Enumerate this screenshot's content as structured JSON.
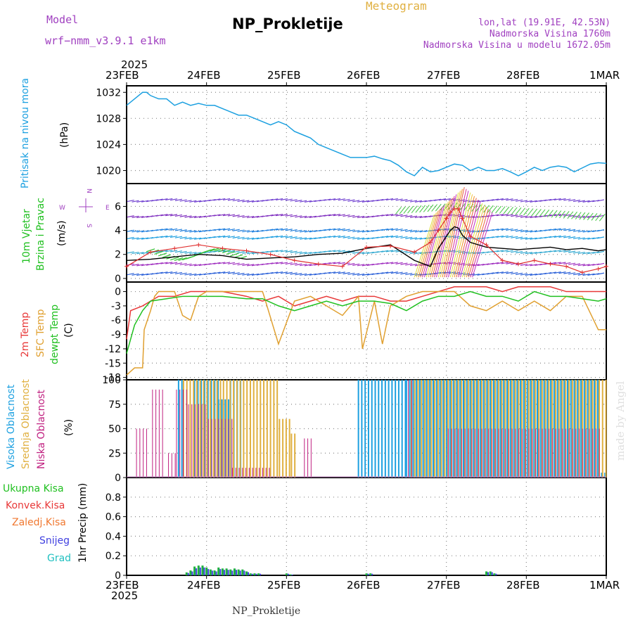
{
  "header": {
    "model_label": "Model",
    "model_name": "wrf−nmm_v3.9.1 e1km",
    "title": "NP_Prokletije",
    "meteogram": "Meteogram",
    "lonlat": "lon,lat (19.91E, 42.53N)",
    "altitude": "Nadmorska Visina 1760m",
    "model_altitude": "Nadmorska Visina u modelu 1672.05m"
  },
  "time_axis": {
    "year": "2025",
    "labels": [
      "23FEB",
      "24FEB",
      "25FEB",
      "26FEB",
      "27FEB",
      "28FEB",
      "1MAR"
    ]
  },
  "panel_labels": {
    "pressure_name": "Pritisak na nivou mora",
    "pressure_unit": "(hPa)",
    "wind_name1": "10m Vjetar",
    "wind_name2": "Brzina i Pravac",
    "wind_unit": "(m/s)",
    "wind_compass_n": "N",
    "wind_compass_s": "S",
    "wind_compass_w": "W",
    "wind_compass_e": "E",
    "temp_2m": "2m Temp",
    "temp_sfc": "SFC Temp",
    "temp_dew": "dewpt Temp",
    "temp_unit": "(C)",
    "cloud_high": "Visoka Oblacnost",
    "cloud_mid": "Srednja Oblacnost",
    "cloud_low": "Niska Oblacnost",
    "cloud_unit": "(%)",
    "precip_total": "Ukupna Kisa",
    "precip_conv": "Konvek.Kisa",
    "precip_strat": "Zaledj.Kisa",
    "precip_snow": "Snijeg",
    "precip_hail": "Grad",
    "precip_unit": "1hr Precip (mm)"
  },
  "footer": "NP_Prokletije",
  "credit": "made by Angel",
  "colors": {
    "pressure": "#1ca0e0",
    "wind_speed": "#000000",
    "wind_gust": "#e03030",
    "temp_2m": "#e83838",
    "temp_sfc": "#e0a030",
    "temp_dew": "#20c020",
    "cloud_high": "#1ca0e0",
    "cloud_mid": "#e0b040",
    "cloud_low": "#c02080",
    "precip_total": "#20b040",
    "precip_snow": "#4040e0",
    "precip_hail": "#20c0c0",
    "title_purple": "#a040c0"
  },
  "chart_data": [
    {
      "type": "line",
      "name": "pressure",
      "x_unit": "days since 23FEB 00Z",
      "ylim": [
        1018,
        1033
      ],
      "yticks": [
        1020,
        1024,
        1028,
        1032
      ],
      "x": [
        0,
        0.1,
        0.2,
        0.25,
        0.3,
        0.4,
        0.5,
        0.6,
        0.7,
        0.8,
        0.9,
        1.0,
        1.1,
        1.2,
        1.3,
        1.4,
        1.5,
        1.6,
        1.7,
        1.8,
        1.9,
        2.0,
        2.1,
        2.2,
        2.3,
        2.4,
        2.5,
        2.6,
        2.7,
        2.8,
        2.9,
        3.0,
        3.1,
        3.2,
        3.3,
        3.4,
        3.5,
        3.6,
        3.7,
        3.8,
        3.9,
        4.0,
        4.1,
        4.2,
        4.3,
        4.4,
        4.5,
        4.6,
        4.7,
        4.8,
        4.9,
        5.0,
        5.1,
        5.2,
        5.3,
        5.4,
        5.5,
        5.6,
        5.7,
        5.8,
        5.9,
        6.0
      ],
      "y": [
        1030,
        1031,
        1032,
        1032,
        1031.5,
        1031,
        1031,
        1030,
        1030.5,
        1030,
        1030.3,
        1030,
        1030,
        1029.5,
        1029,
        1028.5,
        1028.5,
        1028,
        1027.5,
        1027,
        1027.5,
        1027,
        1026,
        1025.5,
        1025,
        1024,
        1023.5,
        1023,
        1022.5,
        1022,
        1022,
        1022,
        1022.2,
        1021.8,
        1021.5,
        1020.8,
        1019.8,
        1019.2,
        1020.5,
        1019.8,
        1020,
        1020.5,
        1021,
        1020.8,
        1020,
        1020.5,
        1020,
        1020,
        1020.3,
        1019.8,
        1019.2,
        1019.8,
        1020.5,
        1020,
        1020.5,
        1020.7,
        1020.5,
        1019.8,
        1020.4,
        1021,
        1021.2,
        1021.1
      ]
    },
    {
      "type": "line",
      "name": "wind",
      "ylim": [
        -0.3,
        7.9
      ],
      "yticks": [
        0,
        2,
        4,
        6
      ],
      "series": [
        {
          "name": "speed",
          "x": [
            0,
            0.3,
            0.6,
            0.9,
            1.2,
            1.5,
            1.8,
            2.1,
            2.4,
            2.7,
            3.0,
            3.3,
            3.6,
            3.8,
            3.9,
            4.0,
            4.05,
            4.1,
            4.15,
            4.2,
            4.3,
            4.5,
            4.7,
            4.9,
            5.1,
            5.3,
            5.5,
            5.7,
            5.9,
            6.0
          ],
          "y": [
            1.5,
            1.6,
            1.8,
            2.0,
            1.9,
            1.6,
            1.7,
            1.8,
            2.0,
            2.1,
            2.5,
            2.8,
            1.5,
            1.0,
            2.5,
            3.5,
            4.0,
            4.3,
            4.2,
            3.6,
            3.0,
            2.6,
            2.5,
            2.4,
            2.5,
            2.6,
            2.4,
            2.5,
            2.3,
            2.4
          ]
        },
        {
          "name": "gust",
          "x": [
            0,
            0.3,
            0.6,
            0.9,
            1.2,
            1.5,
            1.8,
            2.1,
            2.4,
            2.7,
            3.0,
            3.3,
            3.6,
            3.8,
            3.9,
            4.0,
            4.05,
            4.1,
            4.15,
            4.2,
            4.3,
            4.5,
            4.7,
            4.9,
            5.1,
            5.3,
            5.5,
            5.7,
            5.9,
            6.0
          ],
          "y": [
            1.0,
            2.2,
            2.5,
            2.8,
            2.5,
            2.3,
            2.0,
            1.5,
            1.2,
            1.0,
            2.6,
            2.7,
            2.2,
            3.0,
            4.0,
            5.0,
            5.5,
            5.8,
            5.8,
            5.0,
            3.5,
            2.8,
            1.5,
            1.2,
            1.5,
            1.2,
            1.0,
            0.5,
            0.8,
            1.0
          ]
        }
      ]
    },
    {
      "type": "line",
      "name": "temperature",
      "ylim": [
        -18.5,
        2
      ],
      "yticks": [
        -18,
        -15,
        -12,
        -9,
        -6,
        -3,
        0
      ],
      "series": [
        {
          "name": "2m",
          "x": [
            0,
            0.05,
            0.2,
            0.3,
            0.4,
            0.6,
            0.8,
            1.0,
            1.2,
            1.5,
            1.7,
            1.9,
            2.1,
            2.3,
            2.5,
            2.7,
            2.9,
            3.1,
            3.3,
            3.5,
            3.7,
            3.9,
            4.1,
            4.3,
            4.5,
            4.7,
            4.9,
            5.1,
            5.3,
            5.5,
            5.7,
            5.9,
            6.0
          ],
          "y": [
            -10,
            -4,
            -3,
            -2,
            -1,
            -1,
            0,
            0,
            0,
            -1,
            -2,
            -1,
            -3,
            -2,
            -1,
            -2,
            -1,
            -1,
            -2,
            -2,
            -1,
            0,
            1,
            1,
            1,
            0,
            1,
            1,
            1,
            0,
            0,
            0,
            0
          ]
        },
        {
          "name": "SFC",
          "x": [
            0,
            0.1,
            0.2,
            0.22,
            0.3,
            0.35,
            0.4,
            0.6,
            0.7,
            0.8,
            0.9,
            1.0,
            1.2,
            1.5,
            1.7,
            1.72,
            1.9,
            2.1,
            2.3,
            2.5,
            2.7,
            2.9,
            2.95,
            3.1,
            3.2,
            3.3,
            3.5,
            3.7,
            4.0,
            4.1,
            4.3,
            4.5,
            4.7,
            4.9,
            5.1,
            5.3,
            5.5,
            5.7,
            5.9,
            6.0
          ],
          "y": [
            -17.5,
            -16,
            -16,
            -8,
            -4,
            -1,
            0,
            0,
            -5,
            -6,
            -1,
            0,
            0,
            0,
            0,
            -1,
            -11,
            -2,
            -1,
            -3,
            -5,
            -1,
            -12,
            -2,
            -11,
            -3,
            -1,
            0,
            0,
            0,
            -3,
            -4,
            -2,
            -4,
            -2,
            -4,
            -1,
            -1,
            -8,
            -8
          ]
        },
        {
          "name": "dewpt",
          "x": [
            0,
            0.1,
            0.2,
            0.3,
            0.5,
            0.7,
            1.0,
            1.2,
            1.5,
            1.7,
            1.9,
            2.1,
            2.3,
            2.5,
            2.7,
            2.9,
            3.1,
            3.3,
            3.5,
            3.7,
            3.9,
            4.1,
            4.3,
            4.5,
            4.7,
            4.9,
            5.1,
            5.3,
            5.5,
            5.7,
            5.9,
            6.0
          ],
          "y": [
            -13,
            -7,
            -4,
            -2,
            -1.5,
            -1,
            -1,
            -1,
            -1.5,
            -1.5,
            -3,
            -4,
            -3,
            -2,
            -3,
            -2,
            -2,
            -2.5,
            -4,
            -2,
            -1,
            -1,
            0,
            -1,
            -1,
            -2,
            0,
            -1,
            -1,
            -1.5,
            -2,
            -1.5
          ]
        }
      ]
    },
    {
      "type": "bar",
      "name": "cloud_cover",
      "ylim": [
        0,
        100
      ],
      "yticks": [
        0,
        25,
        50,
        75,
        100
      ],
      "series": [
        {
          "name": "Visoka Oblacnost",
          "segments": [
            [
              0.65,
              0.7,
              100
            ],
            [
              0.85,
              1.15,
              100
            ],
            [
              1.15,
              1.3,
              80
            ],
            [
              1.3,
              1.45,
              100
            ],
            [
              2.9,
              3.5,
              100
            ],
            [
              3.5,
              5.9,
              100
            ],
            [
              5.9,
              6.0,
              5
            ]
          ]
        },
        {
          "name": "Srednja Oblacnost",
          "segments": [
            [
              0.7,
              1.2,
              100
            ],
            [
              1.2,
              1.9,
              100
            ],
            [
              1.9,
              2.05,
              60
            ],
            [
              2.05,
              2.1,
              45
            ],
            [
              3.55,
              3.8,
              100
            ],
            [
              3.8,
              5.9,
              100
            ],
            [
              5.9,
              6.0,
              100
            ]
          ]
        },
        {
          "name": "Niska Oblacnost",
          "segments": [
            [
              0.1,
              0.25,
              50
            ],
            [
              0.3,
              0.45,
              90
            ],
            [
              0.5,
              0.6,
              25
            ],
            [
              0.6,
              0.75,
              90
            ],
            [
              0.75,
              1.0,
              75
            ],
            [
              1.0,
              1.3,
              60
            ],
            [
              1.3,
              1.8,
              10
            ],
            [
              2.2,
              2.3,
              40
            ],
            [
              3.5,
              3.55,
              100
            ],
            [
              4.0,
              5.9,
              50
            ]
          ]
        }
      ]
    },
    {
      "type": "bar",
      "name": "precipitation",
      "ylim": [
        0,
        1.0
      ],
      "yticks": [
        0,
        0.2,
        0.4,
        0.6,
        0.8
      ],
      "series": [
        {
          "name": "Ukupna Kisa",
          "x": [
            0.75,
            0.8,
            0.85,
            0.9,
            0.95,
            1.0,
            1.05,
            1.1,
            1.15,
            1.2,
            1.25,
            1.3,
            1.35,
            1.4,
            1.45,
            1.5,
            1.55,
            1.6,
            1.65,
            2.0,
            2.05,
            3.0,
            3.05,
            4.5,
            4.55,
            4.6
          ],
          "y": [
            0.03,
            0.05,
            0.09,
            0.1,
            0.1,
            0.08,
            0.06,
            0.05,
            0.08,
            0.07,
            0.07,
            0.06,
            0.07,
            0.06,
            0.06,
            0.04,
            0.02,
            0.02,
            0.02,
            0.02,
            0.01,
            0.02,
            0.02,
            0.04,
            0.04,
            0.02
          ]
        }
      ]
    }
  ]
}
